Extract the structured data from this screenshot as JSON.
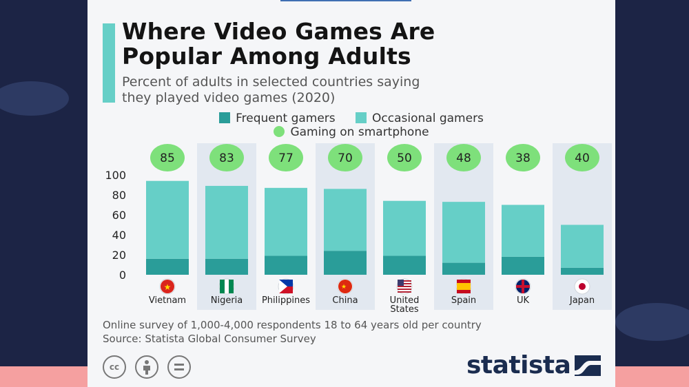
{
  "title_line1": "Where Video Games Are",
  "title_line2": "Popular Among Adults",
  "subtitle_line1": "Percent of adults in selected countries saying",
  "subtitle_line2": "they played video games (2020)",
  "legend": {
    "frequent": "Frequent gamers",
    "occasional": "Occasional gamers",
    "smartphone": "Gaming on smartphone"
  },
  "footnote": "Online survey of 1,000-4,000 respondents 18 to 64 years old per country",
  "source": "Source: Statista Global Consumer Survey",
  "logo": "statista",
  "license_icons": [
    "cc-icon",
    "attribution-icon",
    "no-derivatives-icon"
  ],
  "colors": {
    "frequent": "#2a9d99",
    "occasional": "#66cfc7",
    "smartphone": "#7ee07b",
    "accent": "#66cfc7",
    "brand": "#1a2c4f"
  },
  "chart_data": {
    "type": "bar",
    "stacked": true,
    "categories": [
      "Vietnam",
      "Nigeria",
      "Philippines",
      "China",
      "United States",
      "Spain",
      "UK",
      "Japan"
    ],
    "category_lines": [
      [
        "Vietnam"
      ],
      [
        "Nigeria"
      ],
      [
        "Philippines"
      ],
      [
        "China"
      ],
      [
        "United",
        "States"
      ],
      [
        "Spain"
      ],
      [
        "UK"
      ],
      [
        "Japan"
      ]
    ],
    "flags": [
      "vietnam-flag-icon",
      "nigeria-flag-icon",
      "philippines-flag-icon",
      "china-flag-icon",
      "united-states-flag-icon",
      "spain-flag-icon",
      "uk-flag-icon",
      "japan-flag-icon"
    ],
    "series": [
      {
        "name": "Frequent gamers",
        "values": [
          16,
          16,
          19,
          24,
          19,
          12,
          18,
          7
        ]
      },
      {
        "name": "Occasional gamers",
        "values": [
          78,
          73,
          68,
          62,
          55,
          61,
          52,
          43
        ]
      }
    ],
    "smartphone": {
      "name": "Gaming on smartphone",
      "values": [
        85,
        83,
        77,
        70,
        50,
        48,
        38,
        40
      ]
    },
    "yticks": [
      0,
      20,
      40,
      60,
      80,
      100
    ],
    "ylim": [
      0,
      100
    ],
    "grid": false,
    "legend_position": "top"
  }
}
